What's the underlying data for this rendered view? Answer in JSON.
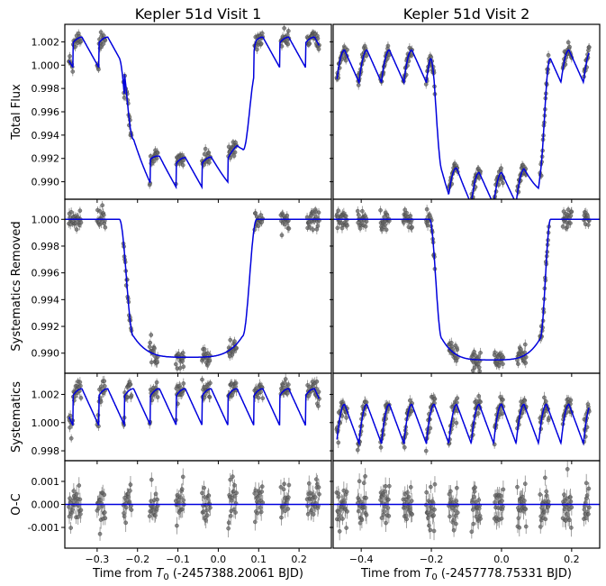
{
  "chart_data": [
    {
      "type": "scatter",
      "title": "Kepler 51d Visit 1",
      "xlabel": "Time from $T_0$ (-2457388.20061 BJD)",
      "xlim": [
        -0.38,
        0.28
      ],
      "x_ticks": [
        -0.3,
        -0.2,
        -0.1,
        0.0,
        0.1,
        0.2
      ],
      "panels": [
        {
          "name": "flux",
          "ylabel": "Total Flux",
          "ylim": [
            0.9885,
            1.0035
          ],
          "y_ticks": [
            0.99,
            0.992,
            0.994,
            0.996,
            0.998,
            1.0,
            1.002
          ]
        },
        {
          "name": "detrended",
          "ylabel": "Systematics Removed",
          "ylim": [
            0.9885,
            1.0015
          ],
          "y_ticks": [
            0.99,
            0.992,
            0.994,
            0.996,
            0.998,
            1.0
          ]
        },
        {
          "name": "systematics",
          "ylabel": "Systematics",
          "ylim": [
            0.9973,
            1.0035
          ],
          "y_ticks": [
            0.998,
            1.0,
            1.002
          ]
        },
        {
          "name": "residuals",
          "ylabel": "O-C",
          "ylim": [
            -0.0019,
            0.0019
          ],
          "y_ticks": [
            -0.001,
            0.0,
            0.001
          ]
        }
      ],
      "transit": {
        "ingress_start": -0.245,
        "ingress_end": -0.21,
        "egress_start": 0.06,
        "egress_end": 0.095,
        "depth": 0.0103
      },
      "ramp": {
        "period": 0.064,
        "phase0": -0.36,
        "start": 1.0019,
        "peak": 1.0024,
        "drop_to": 0.9998
      },
      "data_windows": [
        [
          -0.37,
          -0.34
        ],
        [
          -0.3,
          -0.28
        ],
        [
          -0.235,
          -0.215
        ],
        [
          -0.17,
          -0.15
        ],
        [
          -0.105,
          -0.085
        ],
        [
          -0.04,
          -0.02
        ],
        [
          0.025,
          0.045
        ],
        [
          0.09,
          0.11
        ],
        [
          0.155,
          0.175
        ],
        [
          0.22,
          0.25
        ]
      ]
    },
    {
      "type": "scatter",
      "title": "Kepler 51d Visit 2",
      "xlabel": "Time from $T_0$ (-2457778.75331 BJD)",
      "xlim": [
        -0.48,
        0.28
      ],
      "x_ticks": [
        -0.4,
        -0.2,
        0.0,
        0.2
      ],
      "panels": [
        {
          "name": "flux",
          "ylim": [
            0.9885,
            1.0035
          ]
        },
        {
          "name": "detrended",
          "ylim": [
            0.9885,
            1.0015
          ]
        },
        {
          "name": "systematics",
          "ylim": [
            0.9973,
            1.0035
          ]
        },
        {
          "name": "residuals",
          "ylim": [
            -0.0019,
            0.0019
          ]
        }
      ],
      "transit": {
        "ingress_start": -0.205,
        "ingress_end": -0.17,
        "egress_start": 0.11,
        "egress_end": 0.14,
        "depth": 0.0105
      },
      "ramp": {
        "period": 0.064,
        "phase0": -0.47,
        "start": 0.9986,
        "peak": 1.0013,
        "drop_to": 0.9985
      },
      "data_windows": [
        [
          -0.47,
          -0.44
        ],
        [
          -0.41,
          -0.385
        ],
        [
          -0.345,
          -0.32
        ],
        [
          -0.28,
          -0.255
        ],
        [
          -0.215,
          -0.19
        ],
        [
          -0.15,
          -0.125
        ],
        [
          -0.085,
          -0.06
        ],
        [
          -0.02,
          0.005
        ],
        [
          0.045,
          0.07
        ],
        [
          0.11,
          0.135
        ],
        [
          0.175,
          0.2
        ],
        [
          0.235,
          0.25
        ]
      ]
    }
  ]
}
